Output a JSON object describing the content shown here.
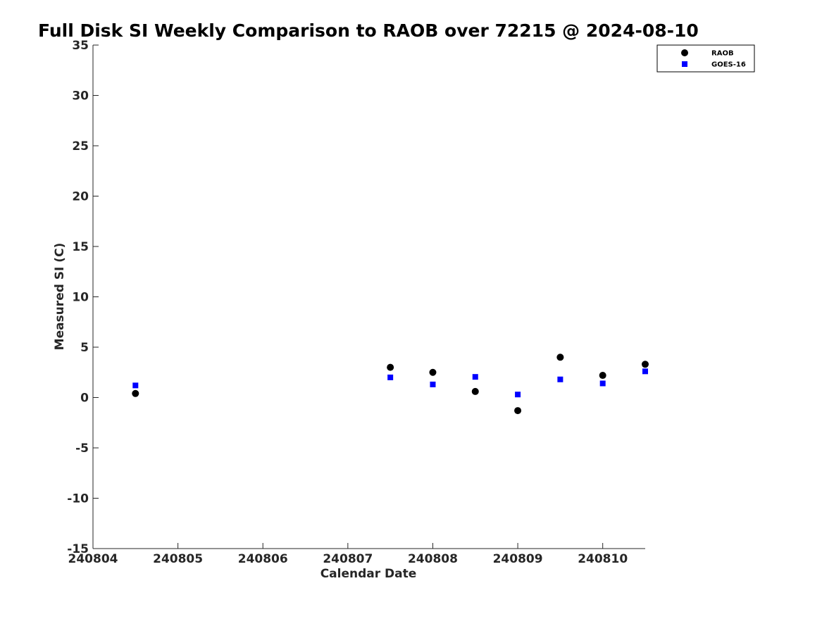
{
  "chart_data": {
    "type": "scatter",
    "title": "Full Disk SI Weekly Comparison to RAOB over 72215 @ 2024-08-10",
    "xlabel": "Calendar Date",
    "ylabel": "Measured SI (C)",
    "xlim": [
      240804,
      240810.5
    ],
    "ylim": [
      -15,
      35
    ],
    "xticks": [
      240804,
      240805,
      240806,
      240807,
      240808,
      240809,
      240810
    ],
    "xtick_labels": [
      "240804",
      "240805",
      "240806",
      "240807",
      "240808",
      "240809",
      "240810"
    ],
    "yticks": [
      35,
      30,
      25,
      20,
      15,
      10,
      5,
      0,
      -5,
      -10,
      -15
    ],
    "ytick_labels": [
      "35",
      "30",
      "25",
      "20",
      "15",
      "10",
      "5",
      "0",
      "-5",
      "-10",
      "-15"
    ],
    "grid": false,
    "legend_position": "top-right",
    "series": [
      {
        "name": "RAOB",
        "marker": "circle",
        "color": "#000000",
        "x": [
          240804.5,
          240807.5,
          240808.0,
          240808.5,
          240809.0,
          240809.5,
          240810.0,
          240810.5
        ],
        "y": [
          0.4,
          3.0,
          2.5,
          0.6,
          -1.3,
          4.0,
          2.2,
          3.3
        ]
      },
      {
        "name": "GOES-16",
        "marker": "square",
        "color": "#0000ff",
        "x": [
          240804.5,
          240807.5,
          240808.0,
          240808.5,
          240809.0,
          240809.5,
          240810.0,
          240810.5
        ],
        "y": [
          1.2,
          2.0,
          1.3,
          2.05,
          0.3,
          1.8,
          1.4,
          2.6
        ]
      }
    ]
  }
}
